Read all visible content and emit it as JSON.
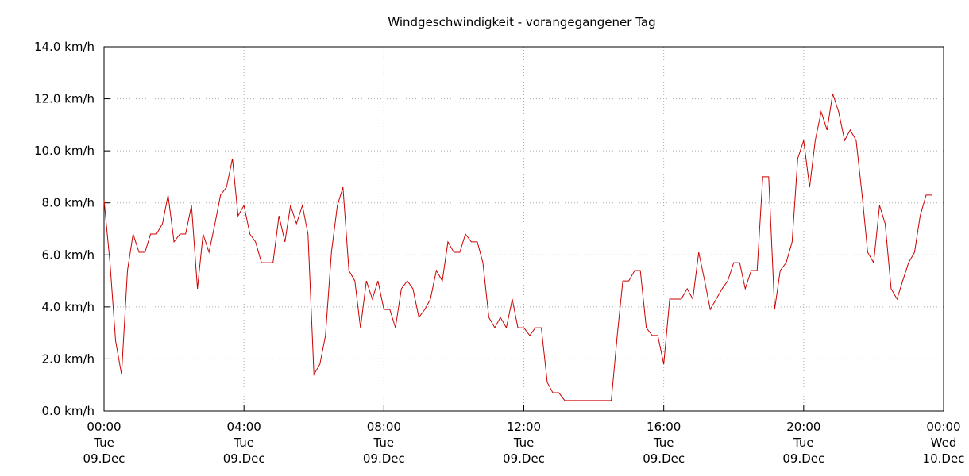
{
  "chart_data": {
    "type": "line",
    "title": "Windgeschwindigkeit - vorangegangener Tag",
    "x": [
      0,
      0.17,
      0.33,
      0.5,
      0.67,
      0.83,
      1,
      1.17,
      1.33,
      1.5,
      1.67,
      1.83,
      2,
      2.17,
      2.33,
      2.5,
      2.67,
      2.83,
      3,
      3.17,
      3.33,
      3.5,
      3.67,
      3.83,
      4,
      4.17,
      4.33,
      4.5,
      4.67,
      4.83,
      5,
      5.17,
      5.33,
      5.5,
      5.67,
      5.83,
      6,
      6.17,
      6.33,
      6.5,
      6.67,
      6.83,
      7,
      7.17,
      7.33,
      7.5,
      7.67,
      7.83,
      8,
      8.17,
      8.33,
      8.5,
      8.67,
      8.83,
      9,
      9.17,
      9.33,
      9.5,
      9.67,
      9.83,
      10,
      10.17,
      10.33,
      10.5,
      10.67,
      10.83,
      11,
      11.17,
      11.33,
      11.5,
      11.67,
      11.83,
      12,
      12.17,
      12.33,
      12.5,
      12.67,
      12.83,
      13,
      13.17,
      14.5,
      14.67,
      14.83,
      15,
      15.17,
      15.33,
      15.5,
      15.67,
      15.83,
      16,
      16.17,
      16.33,
      16.5,
      16.67,
      16.83,
      17,
      17.17,
      17.33,
      17.5,
      17.67,
      17.83,
      18,
      18.17,
      18.33,
      18.5,
      18.67,
      18.83,
      19,
      19.17,
      19.33,
      19.5,
      19.67,
      19.83,
      20,
      20.17,
      20.33,
      20.5,
      20.67,
      20.83,
      21,
      21.17,
      21.33,
      21.5,
      21.67,
      21.83,
      22,
      22.17,
      22.33,
      22.5,
      22.67,
      22.83,
      23,
      23.17,
      23.33,
      23.5,
      23.67
    ],
    "series": [
      {
        "name": "Windgeschwindigkeit",
        "color": "#cc0000",
        "values": [
          8.1,
          5.7,
          2.7,
          1.4,
          5.4,
          6.8,
          6.1,
          6.1,
          6.8,
          6.8,
          7.2,
          8.3,
          6.5,
          6.8,
          6.8,
          7.9,
          4.7,
          6.8,
          6.1,
          7.2,
          8.3,
          8.6,
          9.7,
          7.5,
          7.9,
          6.8,
          6.5,
          5.7,
          5.7,
          5.7,
          7.5,
          6.5,
          7.9,
          7.2,
          7.9,
          6.8,
          1.4,
          1.8,
          2.9,
          6.1,
          7.9,
          8.6,
          5.4,
          5.0,
          3.2,
          5.0,
          4.3,
          5.0,
          3.9,
          3.9,
          3.2,
          4.7,
          5.0,
          4.7,
          3.6,
          3.9,
          4.3,
          5.4,
          5.0,
          6.5,
          6.1,
          6.1,
          6.8,
          6.5,
          6.5,
          5.7,
          3.6,
          3.2,
          3.6,
          3.2,
          4.3,
          3.2,
          3.2,
          2.9,
          3.2,
          3.2,
          1.1,
          0.7,
          0.7,
          0.4,
          0.4,
          2.9,
          5.0,
          5.0,
          5.4,
          5.4,
          3.2,
          2.9,
          2.9,
          1.8,
          4.3,
          4.3,
          4.3,
          4.7,
          4.3,
          6.1,
          5.0,
          3.9,
          4.3,
          4.7,
          5.0,
          5.7,
          5.7,
          4.7,
          5.4,
          5.4,
          9.0,
          9.0,
          3.9,
          5.4,
          5.7,
          6.5,
          9.7,
          10.4,
          8.6,
          10.4,
          11.5,
          10.8,
          12.2,
          11.5,
          10.4,
          10.8,
          10.4,
          8.3,
          6.1,
          5.7,
          7.9,
          7.2,
          4.7,
          4.3,
          5.0,
          5.7,
          6.1,
          7.5,
          8.3,
          8.3
        ]
      }
    ],
    "xlim": [
      0,
      24
    ],
    "xticks": [
      {
        "value": 0,
        "label": "00:00\nTue\n09.Dec"
      },
      {
        "value": 4,
        "label": "04:00\nTue\n09.Dec"
      },
      {
        "value": 8,
        "label": "08:00\nTue\n09.Dec"
      },
      {
        "value": 12,
        "label": "12:00\nTue\n09.Dec"
      },
      {
        "value": 16,
        "label": "16:00\nTue\n09.Dec"
      },
      {
        "value": 20,
        "label": "20:00\nTue\n09.Dec"
      },
      {
        "value": 24,
        "label": "00:00\nWed\n10.Dec"
      }
    ],
    "ylim": [
      0,
      14
    ],
    "yticks": [
      {
        "value": 0,
        "label": "0.0 km/h"
      },
      {
        "value": 2,
        "label": "2.0 km/h"
      },
      {
        "value": 4,
        "label": "4.0 km/h"
      },
      {
        "value": 6,
        "label": "6.0 km/h"
      },
      {
        "value": 8,
        "label": "8.0 km/h"
      },
      {
        "value": 10,
        "label": "10.0 km/h"
      },
      {
        "value": 12,
        "label": "12.0 km/h"
      },
      {
        "value": 14,
        "label": "14.0 km/h"
      }
    ],
    "grid": true
  }
}
